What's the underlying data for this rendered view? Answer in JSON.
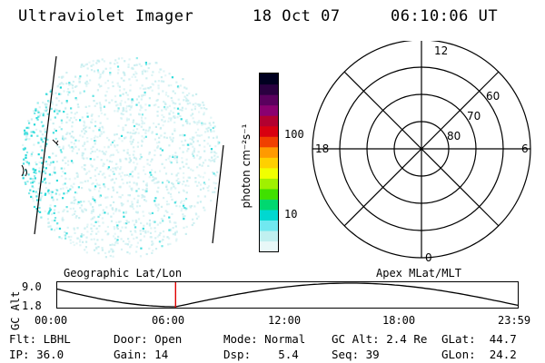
{
  "header": {
    "instrument": "Ultraviolet Imager",
    "date": "18 Oct 07",
    "time": "06:10:06 UT"
  },
  "colorbar": {
    "unit_label": "photon cm⁻²s⁻¹",
    "ticks": [
      {
        "label": "100",
        "value": 100
      },
      {
        "label": "10",
        "value": 10
      }
    ],
    "colors": [
      "#000020",
      "#2a0040",
      "#5a005e",
      "#8a0070",
      "#b20030",
      "#d80010",
      "#f04000",
      "#ff9a00",
      "#ffd000",
      "#f0ff00",
      "#a0f000",
      "#40e000",
      "#00d870",
      "#00d8d0",
      "#70e8f0",
      "#c0f0f0",
      "#e8f8f8"
    ]
  },
  "polar_plot": {
    "lat_labels": [
      "80",
      "70",
      "60"
    ],
    "mlt_labels": {
      "top": "12",
      "bottom": "0",
      "left": "18",
      "right": "6"
    }
  },
  "timeline": {
    "left_label": "Geographic Lat/Lon",
    "right_label": "Apex MLat/MLT",
    "y_axis_label": "GC Alt",
    "y_ticks": [
      "9.0",
      "1.8"
    ],
    "x_ticks": [
      "00:00",
      "06:00",
      "12:00",
      "18:00",
      "23:59"
    ],
    "current_time_fraction": 0.2571
  },
  "info": {
    "row1": [
      {
        "label": "Flt:",
        "value": "LBHL"
      },
      {
        "label": "Door:",
        "value": "Open"
      },
      {
        "label": "Mode:",
        "value": "Normal"
      },
      {
        "label": "GC Alt:",
        "value": "2.4 Re"
      },
      {
        "label": "GLat:",
        "value": "44.7"
      }
    ],
    "row2": [
      {
        "label": "IP:",
        "value": "36.0"
      },
      {
        "label": "Gain:",
        "value": "14"
      },
      {
        "label": "Dsp:",
        "value": "5.4"
      },
      {
        "label": "Seq:",
        "value": "39"
      },
      {
        "label": "GLon:",
        "value": "24.2"
      }
    ]
  },
  "colors": {
    "speckle_cyan": "#20d8d8",
    "speckle_pale": "#c8eef0",
    "cursor_red": "#e00000"
  }
}
